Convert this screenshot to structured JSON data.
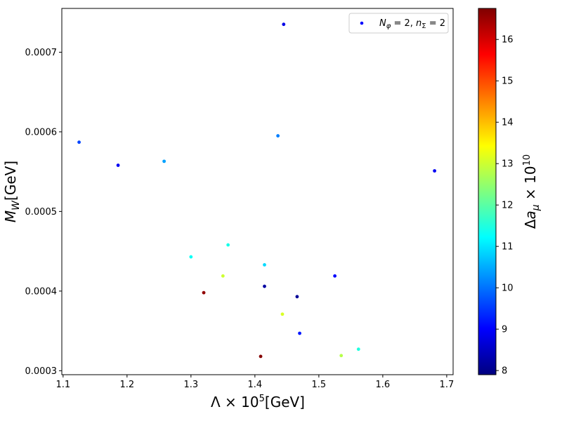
{
  "chart_data": {
    "type": "scatter",
    "xlabel": "Λ × 10⁵[GeV]",
    "ylabel": "M_W[GeV]",
    "xlim": [
      1.098,
      1.71
    ],
    "ylim": [
      0.000295,
      0.000755
    ],
    "x_ticks": [
      "1.1",
      "1.2",
      "1.3",
      "1.4",
      "1.5",
      "1.6",
      "1.7"
    ],
    "y_ticks": [
      "0.0003",
      "0.0004",
      "0.0005",
      "0.0006",
      "0.0007"
    ],
    "legend": {
      "label": "N_φ = 2, n_Σ = 2",
      "position": "top-right",
      "marker_color": "#0000ff"
    },
    "colorbar": {
      "label": "Δa_μ × 10¹⁰",
      "range": [
        7.9,
        16.75
      ],
      "ticks": [
        "8",
        "9",
        "10",
        "11",
        "12",
        "13",
        "14",
        "15",
        "16"
      ],
      "colormap": "jet"
    },
    "grid": false,
    "series": [
      {
        "points": [
          {
            "x": 1.125,
            "y": 0.000587,
            "c": 9.6
          },
          {
            "x": 1.186,
            "y": 0.000558,
            "c": 8.9
          },
          {
            "x": 1.258,
            "y": 0.000563,
            "c": 10.4
          },
          {
            "x": 1.3,
            "y": 0.000443,
            "c": 11.3
          },
          {
            "x": 1.32,
            "y": 0.000398,
            "c": 16.6
          },
          {
            "x": 1.35,
            "y": 0.000419,
            "c": 13.0
          },
          {
            "x": 1.358,
            "y": 0.000458,
            "c": 11.4
          },
          {
            "x": 1.409,
            "y": 0.000318,
            "c": 16.7
          },
          {
            "x": 1.415,
            "y": 0.000406,
            "c": 8.2
          },
          {
            "x": 1.415,
            "y": 0.000433,
            "c": 10.9
          },
          {
            "x": 1.436,
            "y": 0.000595,
            "c": 10.1
          },
          {
            "x": 1.443,
            "y": 0.000371,
            "c": 13.1
          },
          {
            "x": 1.445,
            "y": 0.000735,
            "c": 8.8
          },
          {
            "x": 1.466,
            "y": 0.000393,
            "c": 8.1
          },
          {
            "x": 1.47,
            "y": 0.000347,
            "c": 9.2
          },
          {
            "x": 1.525,
            "y": 0.000419,
            "c": 9.0
          },
          {
            "x": 1.535,
            "y": 0.000319,
            "c": 12.8
          },
          {
            "x": 1.562,
            "y": 0.000327,
            "c": 11.5
          },
          {
            "x": 1.681,
            "y": 0.000551,
            "c": 8.9
          }
        ]
      }
    ]
  }
}
